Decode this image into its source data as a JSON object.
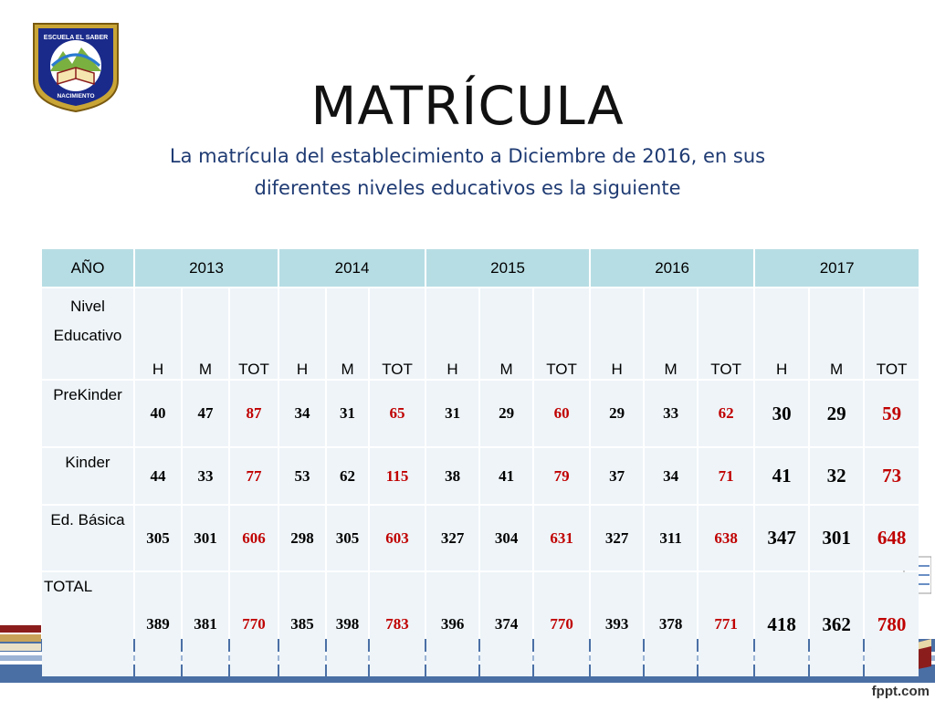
{
  "slide": {
    "title": "MATRÍCULA",
    "subtitle_line1": "La matrícula del establecimiento a Diciembre de 2016,  en sus",
    "subtitle_line2": "diferentes niveles educativos es la siguiente",
    "logo_text_top": "ESCUELA EL SABER",
    "logo_text_bottom": "NACIMIENTO",
    "watermark": "fppt.com"
  },
  "colors": {
    "header_bg": "#b7dde4",
    "cell_bg": "#eef4f8",
    "total_red": "#c00000",
    "subtitle_blue": "#1f3b73",
    "band_blue": "#4a6fa5"
  },
  "table": {
    "year_label": "AÑO",
    "years": [
      "2013",
      "2014",
      "2015",
      "2016",
      "2017"
    ],
    "level_label_1": "Nivel",
    "level_label_2": "Educativo",
    "sub_headers": [
      "H",
      "M",
      "TOT"
    ],
    "rows": [
      {
        "label": "PreKinder",
        "values": [
          "40",
          "47",
          "87",
          "34",
          "31",
          "65",
          "31",
          "29",
          "60",
          "29",
          "33",
          "62",
          "30",
          "29",
          "59"
        ]
      },
      {
        "label": "Kinder",
        "values": [
          "44",
          "33",
          "77",
          "53",
          "62",
          "115",
          "38",
          "41",
          "79",
          "37",
          "34",
          "71",
          "41",
          "32",
          "73"
        ]
      },
      {
        "label": "Ed. Básica",
        "values": [
          "305",
          "301",
          "606",
          "298",
          "305",
          "603",
          "327",
          "304",
          "631",
          "327",
          "311",
          "638",
          "347",
          "301",
          "648"
        ]
      },
      {
        "label": "TOTAL",
        "values": [
          "389",
          "381",
          "770",
          "385",
          "398",
          "783",
          "396",
          "374",
          "770",
          "393",
          "378",
          "771",
          "418",
          "362",
          "780"
        ]
      }
    ]
  }
}
